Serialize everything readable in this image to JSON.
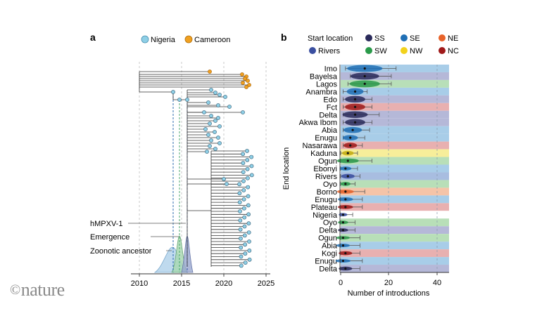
{
  "figure": {
    "logo_text": "nature",
    "logo_copyright": "©"
  },
  "panel_a": {
    "letter": "a",
    "legend": [
      {
        "label": "Nigeria",
        "color": "#8ecfe6"
      },
      {
        "label": "Cameroon",
        "color": "#f0a020"
      }
    ],
    "x_ticks": [
      "2010",
      "2015",
      "2020",
      "2025"
    ],
    "annotations": [
      "hMPXV-1",
      "Emergence",
      "Zoonotic ancestor"
    ],
    "colors": {
      "tree": "#333333",
      "hmpxv1": "#2f4fa0",
      "emergence": "#3aa060",
      "zoonotic": "#1a5fa8"
    }
  },
  "panel_b": {
    "letter": "b",
    "legend_title": "Start location",
    "legend": [
      {
        "label": "SS",
        "color": "#2a2a5a"
      },
      {
        "label": "SE",
        "color": "#1f6fb5"
      },
      {
        "label": "NE",
        "color": "#e8632a"
      },
      {
        "label": "Rivers",
        "color": "#3a4fa0"
      },
      {
        "label": "SW",
        "color": "#2a9a4a"
      },
      {
        "label": "NW",
        "color": "#f2d21c"
      },
      {
        "label": "NC",
        "color": "#a01a1a"
      }
    ],
    "y_axis_label": "End location",
    "x_axis_label": "Number of introductions",
    "x_ticks": [
      "0",
      "20",
      "40"
    ]
  },
  "chart_data": {
    "type": "scatter",
    "xlabel": "Number of introductions",
    "ylabel": "End location",
    "xlim": [
      0,
      47
    ],
    "rows": [
      {
        "location": "Imo",
        "median": 10,
        "low": 2,
        "high": 23,
        "band": "SE"
      },
      {
        "location": "Bayelsa",
        "median": 10,
        "low": 4,
        "high": 21,
        "band": "SS"
      },
      {
        "location": "Lagos",
        "median": 10,
        "low": 3,
        "high": 21,
        "band": "SW"
      },
      {
        "location": "Anambra",
        "median": 6,
        "low": 1,
        "high": 11,
        "band": "SE"
      },
      {
        "location": "Edo",
        "median": 6,
        "low": 1,
        "high": 13,
        "band": "SS"
      },
      {
        "location": "Fct",
        "median": 6,
        "low": 1,
        "high": 13,
        "band": "NC"
      },
      {
        "location": "Delta",
        "median": 6,
        "low": 1,
        "high": 16,
        "band": "SS"
      },
      {
        "location": "Akwa Ibom",
        "median": 6,
        "low": 1,
        "high": 13,
        "band": "SS"
      },
      {
        "location": "Abia",
        "median": 5,
        "low": 1,
        "high": 12,
        "band": "SE"
      },
      {
        "location": "Enugu",
        "median": 4,
        "low": 1,
        "high": 10,
        "band": "SE"
      },
      {
        "location": "Nasarawa",
        "median": 4,
        "low": 1,
        "high": 9,
        "band": "NC"
      },
      {
        "location": "Kaduna",
        "median": 3,
        "low": 0,
        "high": 7,
        "band": "NW"
      },
      {
        "location": "Ogun",
        "median": 3,
        "low": 0,
        "high": 13,
        "band": "SW"
      },
      {
        "location": "Ebonyi",
        "median": 2,
        "low": 0,
        "high": 7,
        "band": "SE"
      },
      {
        "location": "Rivers",
        "median": 3,
        "low": 0,
        "high": 8,
        "band": "Rivers"
      },
      {
        "location": "Oyo",
        "median": 2,
        "low": 0,
        "high": 6,
        "band": "SW"
      },
      {
        "location": "Borno",
        "median": 2,
        "low": 0,
        "high": 10,
        "band": "NE"
      },
      {
        "location": "Enugu",
        "median": 2,
        "low": 0,
        "high": 9,
        "band": "SE"
      },
      {
        "location": "Plateau",
        "median": 2,
        "low": 0,
        "high": 9,
        "band": "NC"
      },
      {
        "location": "Nigeria",
        "median": 1,
        "low": 0,
        "high": 5,
        "band": "none"
      },
      {
        "location": "Oyo",
        "median": 1,
        "low": 0,
        "high": 6,
        "band": "SW"
      },
      {
        "location": "Delta",
        "median": 1,
        "low": 0,
        "high": 6,
        "band": "SS"
      },
      {
        "location": "Ogun",
        "median": 1,
        "low": 0,
        "high": 8,
        "band": "SW"
      },
      {
        "location": "Abia",
        "median": 1,
        "low": 0,
        "high": 8,
        "band": "SE"
      },
      {
        "location": "Kogi",
        "median": 2,
        "low": 0,
        "high": 8,
        "band": "NC"
      },
      {
        "location": "Enugu",
        "median": 1,
        "low": 0,
        "high": 9,
        "band": "SE"
      },
      {
        "location": "Delta",
        "median": 2,
        "low": 0,
        "high": 8,
        "band": "SS"
      }
    ],
    "band_colors": {
      "SE": "#a8cde8",
      "SS": "#b5b8d8",
      "SW": "#b8dfb8",
      "NC": "#e8b0b0",
      "NW": "#f7ee9a",
      "Rivers": "#a8bde0",
      "NE": "#f5c4a8",
      "none": "#ffffff"
    },
    "dot_colors": {
      "SE": "#1f6fb5",
      "SS": "#2a2a5a",
      "SW": "#2a9a4a",
      "NC": "#a01a1a",
      "NW": "#c8b010",
      "Rivers": "#3a4fa0",
      "NE": "#e8632a",
      "none": "#3a4fa0"
    }
  }
}
